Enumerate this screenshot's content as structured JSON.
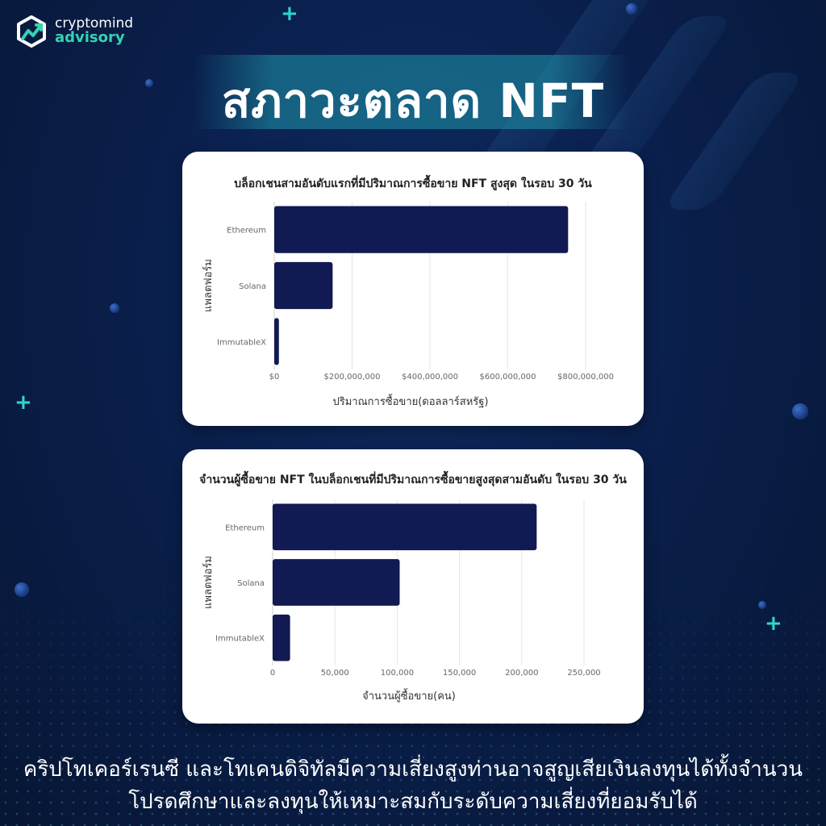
{
  "brand": {
    "name_line1": "cryptomind",
    "name_line2": "advisory",
    "colors": {
      "accent": "#35d3b3",
      "bar": "#111a52",
      "background": "#0a1f4c"
    }
  },
  "headline": "สภาวะตลาด NFT",
  "chart_data": [
    {
      "type": "bar",
      "orientation": "horizontal",
      "title": "บล็อกเชนสามอันดับแรกที่มีปริมาณการซื้อขาย NFT สูงสุด ในรอบ 30 วัน",
      "xlabel": "ปริมาณการซื้อขาย(ดอลลาร์สหรัฐ)",
      "ylabel": "แพลตฟอร์ม",
      "categories": [
        "Ethereum",
        "Solana",
        "ImmutableX"
      ],
      "values": [
        755000000,
        150000000,
        12000000
      ],
      "xlim": [
        0,
        800000000
      ],
      "ticks": [
        0,
        200000000,
        400000000,
        600000000,
        800000000
      ],
      "tick_labels": [
        "$0",
        "$200,000,000",
        "$400,000,000",
        "$600,000,000",
        "$800,000,000"
      ],
      "grid": true,
      "legend": "none"
    },
    {
      "type": "bar",
      "orientation": "horizontal",
      "title": "จำนวนผู้ซื้อขาย NFT ในบล็อกเชนที่มีปริมาณการซื้อขายสูงสุดสามอันดับ ในรอบ 30 วัน",
      "xlabel": "จำนวนผู้ซื้อขาย(คน)",
      "ylabel": "แพลตฟอร์ม",
      "categories": [
        "Ethereum",
        "Solana",
        "ImmutableX"
      ],
      "values": [
        212000,
        102000,
        14000
      ],
      "xlim": [
        0,
        250000
      ],
      "ticks": [
        0,
        50000,
        100000,
        150000,
        200000,
        250000
      ],
      "tick_labels": [
        "0",
        "50,000",
        "100,000",
        "150,000",
        "200,000",
        "250,000"
      ],
      "grid": true,
      "legend": "none"
    }
  ],
  "disclaimer": {
    "line1": "คริปโทเคอร์เรนซี และโทเคนดิจิทัลมีความเสี่ยงสูงท่านอาจสูญเสียเงินลงทุนได้ทั้งจำนวน",
    "line2": "โปรดศึกษาและลงทุนให้เหมาะสมกับระดับความเสี่ยงที่ยอมรับได้"
  }
}
